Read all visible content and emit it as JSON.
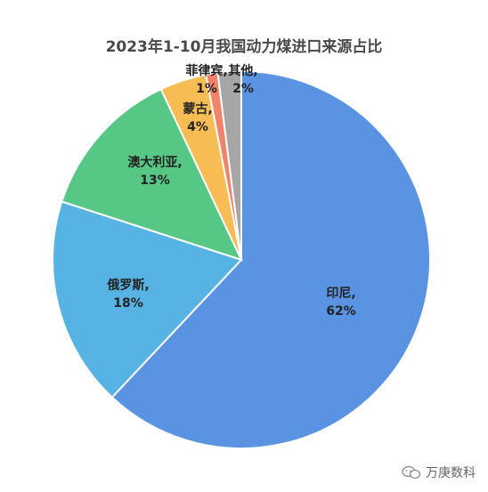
{
  "chart_data": {
    "type": "pie",
    "title": "2023年1-10月我国动力煤进口来源占比",
    "slices": [
      {
        "name": "印尼",
        "value": 62,
        "label_line1": "印尼,",
        "label_line2": "62%",
        "color": "#5b93e3"
      },
      {
        "name": "俄罗斯",
        "value": 18,
        "label_line1": "俄罗斯,",
        "label_line2": "18%",
        "color": "#56b3e3"
      },
      {
        "name": "澳大利亚",
        "value": 13,
        "label_line1": "澳大利亚,",
        "label_line2": "13%",
        "color": "#56c785"
      },
      {
        "name": "蒙古",
        "value": 4,
        "label_line1": "蒙古,",
        "label_line2": "4%",
        "color": "#f8bc55"
      },
      {
        "name": "菲律宾",
        "value": 1,
        "label_line1": "菲律宾,",
        "label_line2": "1%",
        "color": "#f0836a"
      },
      {
        "name": "其他",
        "value": 2,
        "label_line1": "其他,",
        "label_line2": "2%",
        "color": "#a6a6a6"
      }
    ]
  },
  "watermark": {
    "text": "万庚数科",
    "icon": "wechat-icon"
  }
}
